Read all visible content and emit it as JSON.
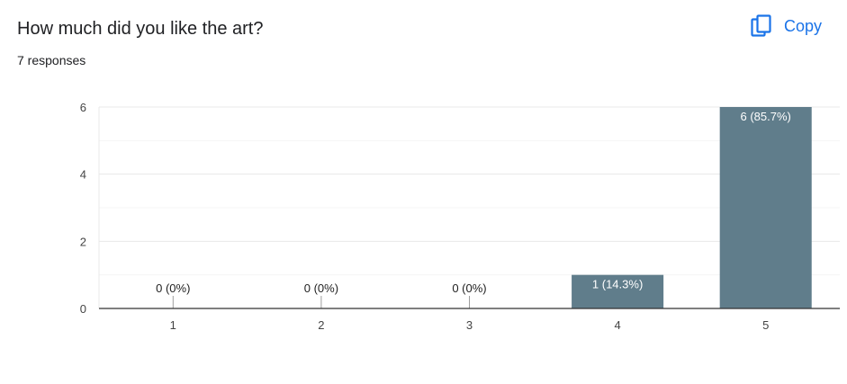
{
  "question": {
    "title": "How much did you like the art?",
    "responses": "7 responses"
  },
  "toolbar": {
    "copy_label": "Copy",
    "copy_icon": "copy-icon",
    "accent_color": "#1a73e8"
  },
  "chart_data": {
    "type": "bar",
    "categories": [
      "1",
      "2",
      "3",
      "4",
      "5"
    ],
    "values": [
      0,
      0,
      0,
      1,
      6
    ],
    "data_labels": [
      "0 (0%)",
      "0 (0%)",
      "0 (0%)",
      "1 (14.3%)",
      "6 (85.7%)"
    ],
    "y_ticks": [
      "0",
      "2",
      "4",
      "6"
    ],
    "ylim": [
      0,
      6
    ],
    "grid": true,
    "bar_color": "#607d8b",
    "title": "",
    "xlabel": "",
    "ylabel": ""
  }
}
